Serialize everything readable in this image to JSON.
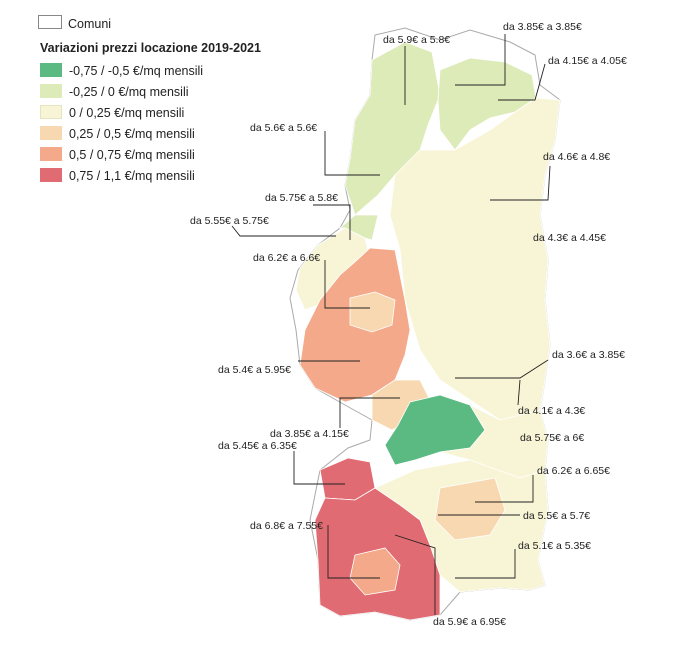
{
  "legend": {
    "boundary_label": "Comuni",
    "title": "Variazioni prezzi locazione 2019-2021",
    "classes": [
      {
        "label": "-0,75 / -0,5 €/mq mensili",
        "color": "#5aba82"
      },
      {
        "label": "-0,25 / 0 €/mq mensili",
        "color": "#dcebb8"
      },
      {
        "label": "0 / 0,25 €/mq mensili",
        "color": "#f8f5d6"
      },
      {
        "label": "0,25 / 0,5 €/mq mensili",
        "color": "#f8d8b0"
      },
      {
        "label": "0,5 / 0,75 €/mq mensili",
        "color": "#f3a98a"
      },
      {
        "label": "0,75 / 1,1 €/mq mensili",
        "color": "#e06b72"
      }
    ]
  },
  "labels": [
    {
      "text": "da 5.9€ a 5.8€"
    },
    {
      "text": "da 3.85€ a 3.85€"
    },
    {
      "text": "da 4.15€ a 4.05€"
    },
    {
      "text": "da 5.6€ a 5.6€"
    },
    {
      "text": "da 4.6€ a 4.8€"
    },
    {
      "text": "da 5.75€ a 5.8€"
    },
    {
      "text": "da 5.55€ a 5.75€"
    },
    {
      "text": "da 4.3€ a 4.45€"
    },
    {
      "text": "da 6.2€ a 6.6€"
    },
    {
      "text": "da 3.6€ a 3.85€"
    },
    {
      "text": "da 5.4€ a 5.95€"
    },
    {
      "text": "da 4.1€ a 4.3€"
    },
    {
      "text": "da 3.85€ a 4.15€"
    },
    {
      "text": "da 5.75€ a 6€"
    },
    {
      "text": "da 5.45€ a 6.35€"
    },
    {
      "text": "da 6.2€ a 6.65€"
    },
    {
      "text": "da 5.5€ a 5.7€"
    },
    {
      "text": "da 6.8€ a 7.55€"
    },
    {
      "text": "da 5.1€ a 5.35€"
    },
    {
      "text": "da 5.9€ a 6.95€"
    }
  ]
}
